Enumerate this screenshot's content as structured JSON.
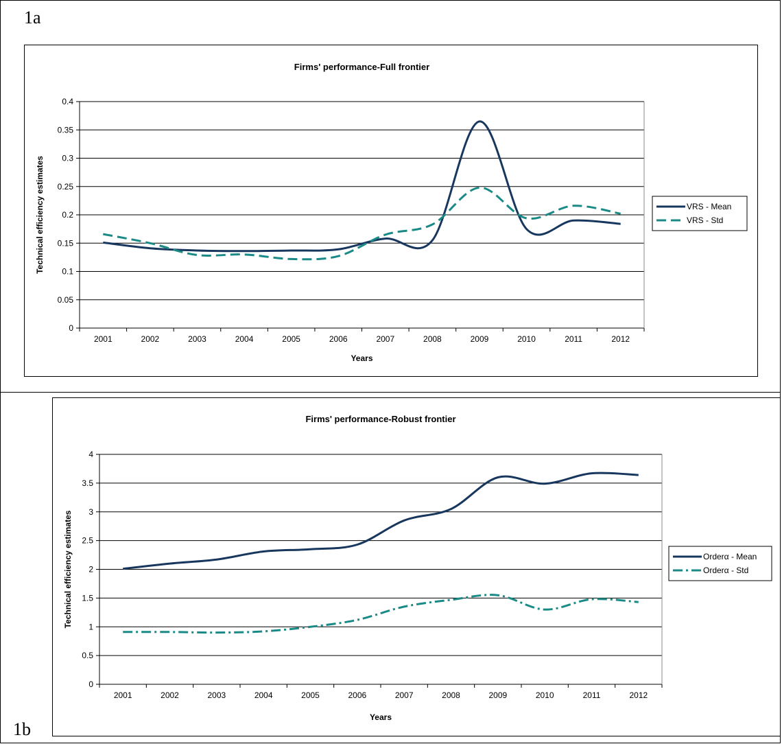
{
  "panels": [
    {
      "label": "1a"
    },
    {
      "label": "1b"
    }
  ],
  "colors": {
    "mean": "#17375E",
    "std": "#1A8A86",
    "grid": "#000000"
  },
  "chart_data": [
    {
      "type": "line",
      "title": "Firms' performance-Full frontier",
      "xlabel": "Years",
      "ylabel": "Technical efficiency estimates",
      "categories": [
        "2001",
        "2002",
        "2003",
        "2004",
        "2005",
        "2006",
        "2007",
        "2008",
        "2009",
        "2010",
        "2011",
        "2012"
      ],
      "ylim": [
        0,
        0.4
      ],
      "yticks": [
        0,
        0.05,
        0.1,
        0.15,
        0.2,
        0.25,
        0.3,
        0.35,
        0.4
      ],
      "ytick_labels": [
        "0",
        "0.05",
        "0.1",
        "0.15",
        "0.2",
        "0.25",
        "0.3",
        "0.35",
        "0.4"
      ],
      "grid": true,
      "legend_position": "right",
      "series": [
        {
          "name": "VRS - Mean",
          "style": "solid",
          "values": [
            0.151,
            0.141,
            0.137,
            0.136,
            0.137,
            0.139,
            0.158,
            0.155,
            0.365,
            0.175,
            0.19,
            0.184
          ]
        },
        {
          "name": "VRS - Std",
          "style": "dashed",
          "values": [
            0.166,
            0.15,
            0.129,
            0.13,
            0.122,
            0.127,
            0.165,
            0.183,
            0.248,
            0.194,
            0.216,
            0.202
          ]
        }
      ]
    },
    {
      "type": "line",
      "title": "Firms' performance-Robust frontier",
      "xlabel": "Years",
      "ylabel": "Technical efficiency estimates",
      "categories": [
        "2001",
        "2002",
        "2003",
        "2004",
        "2005",
        "2006",
        "2007",
        "2008",
        "2009",
        "2010",
        "2011",
        "2012"
      ],
      "ylim": [
        0,
        4
      ],
      "yticks": [
        0,
        0.5,
        1,
        1.5,
        2,
        2.5,
        3,
        3.5,
        4
      ],
      "ytick_labels": [
        "0",
        "0.5",
        "1",
        "1.5",
        "2",
        "2.5",
        "3",
        "3.5",
        "4"
      ],
      "grid": true,
      "legend_position": "right",
      "series": [
        {
          "name": "Orderα - Mean",
          "style": "solid",
          "values": [
            2.01,
            2.1,
            2.17,
            2.31,
            2.35,
            2.43,
            2.85,
            3.05,
            3.6,
            3.49,
            3.67,
            3.64
          ]
        },
        {
          "name": "Orderα - Std",
          "style": "dashdot",
          "values": [
            0.91,
            0.91,
            0.9,
            0.92,
            1.0,
            1.12,
            1.35,
            1.47,
            1.55,
            1.3,
            1.48,
            1.43
          ]
        }
      ]
    }
  ]
}
